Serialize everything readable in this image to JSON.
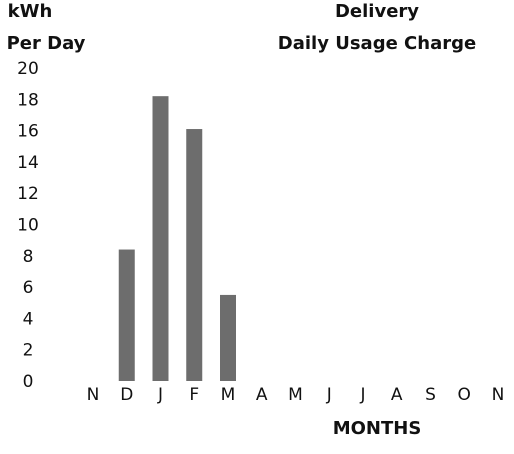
{
  "chart_data": {
    "type": "bar",
    "ylabel_line1": "kWh",
    "ylabel_line2": "Per Day",
    "title_line1": "Delivery",
    "title_line2": "Daily Usage Charge",
    "xlabel": "MONTHS",
    "categories": [
      "N",
      "D",
      "J",
      "F",
      "M",
      "A",
      "M",
      "J",
      "J",
      "A",
      "S",
      "O",
      "N"
    ],
    "values": [
      0,
      8.4,
      18.2,
      16.1,
      5.5,
      0,
      0,
      0,
      0,
      0,
      0,
      0,
      0
    ],
    "ylim": [
      0,
      20
    ],
    "yticks": [
      0,
      2,
      4,
      6,
      8,
      10,
      12,
      14,
      16,
      18,
      20
    ],
    "grid": false,
    "bar_color": "#6d6d6d"
  }
}
